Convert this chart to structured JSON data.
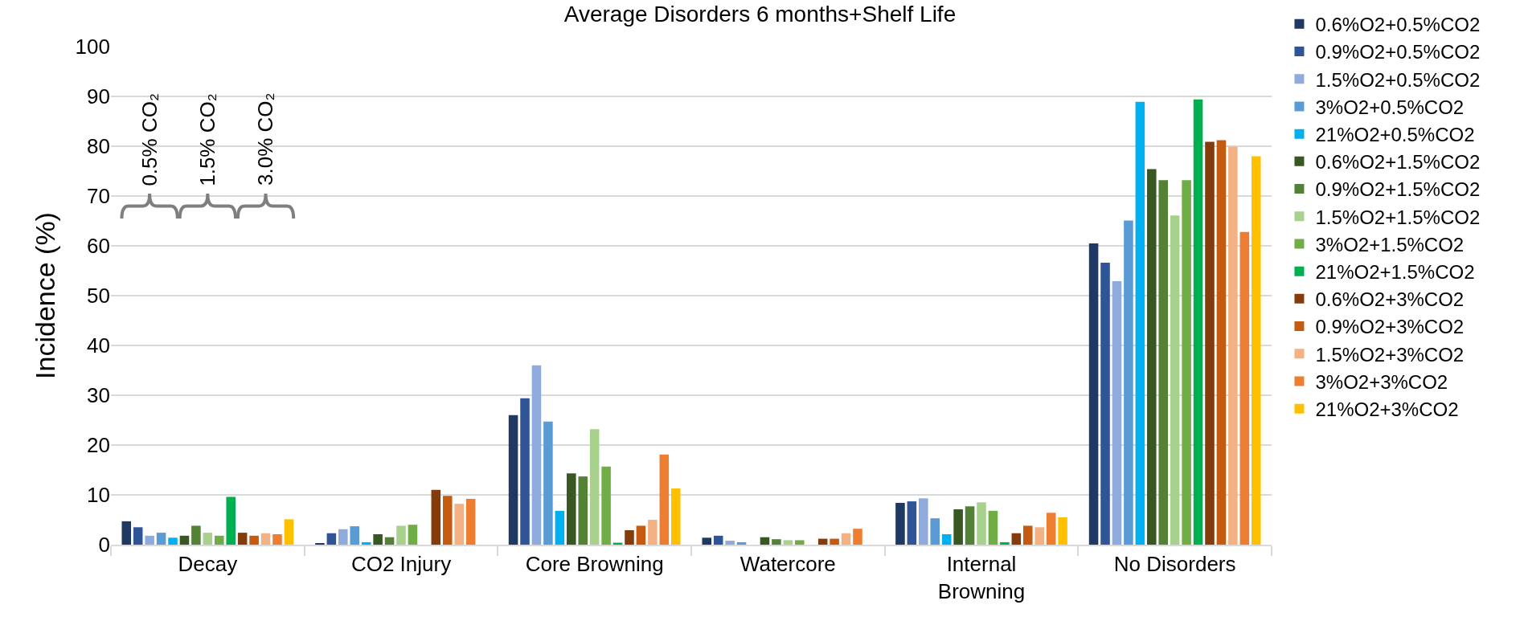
{
  "chart_data": {
    "type": "bar",
    "title": "Average Disorders 6 months+Shelf Life",
    "ylabel": "Incidence (%)",
    "categories": [
      "Decay",
      "CO2 Injury",
      "Core Browning",
      "Watercore",
      "Internal Browning",
      "No Disorders"
    ],
    "series": [
      {
        "name": "0.6%O2+0.5%CO2",
        "color": "#1f3864",
        "values": [
          4.7,
          0.2,
          26.0,
          1.4,
          8.4,
          60.5
        ]
      },
      {
        "name": "0.9%O2+0.5%CO2",
        "color": "#2f5597",
        "values": [
          3.5,
          2.3,
          29.4,
          1.8,
          8.7,
          56.6
        ]
      },
      {
        "name": "1.5%O2+0.5%CO2",
        "color": "#8faadc",
        "values": [
          1.8,
          3.1,
          36.0,
          0.8,
          9.3,
          52.9
        ]
      },
      {
        "name": "3%O2+0.5%CO2",
        "color": "#5b9bd5",
        "values": [
          2.4,
          3.7,
          24.7,
          0.5,
          5.3,
          65.1
        ]
      },
      {
        "name": "21%O2+0.5%CO2",
        "color": "#00b0f0",
        "values": [
          1.4,
          0.5,
          6.8,
          null,
          2.1,
          88.9
        ]
      },
      {
        "name": "0.6%O2+1.5%CO2",
        "color": "#385723",
        "values": [
          1.8,
          2.1,
          14.3,
          1.5,
          7.1,
          75.4
        ]
      },
      {
        "name": "0.9%O2+1.5%CO2",
        "color": "#548235",
        "values": [
          3.8,
          1.5,
          13.7,
          1.1,
          7.7,
          73.2
        ]
      },
      {
        "name": "1.5%O2+1.5%CO2",
        "color": "#a9d18e",
        "values": [
          2.4,
          3.8,
          23.2,
          0.9,
          8.5,
          66.1
        ]
      },
      {
        "name": "3%O2+1.5%CO2",
        "color": "#70ad47",
        "values": [
          1.8,
          4.0,
          15.7,
          0.9,
          6.8,
          73.2
        ]
      },
      {
        "name": "21%O2+1.5%CO2",
        "color": "#00b050",
        "values": [
          9.6,
          null,
          0.4,
          null,
          0.5,
          89.4
        ]
      },
      {
        "name": "0.6%O2+3%CO2",
        "color": "#843c0c",
        "values": [
          2.4,
          11.0,
          2.9,
          1.2,
          2.3,
          80.9
        ]
      },
      {
        "name": "0.9%O2+3%CO2",
        "color": "#c55a11",
        "values": [
          1.8,
          9.8,
          3.8,
          1.2,
          3.8,
          81.2
        ]
      },
      {
        "name": "1.5%O2+3%CO2",
        "color": "#f4b183",
        "values": [
          2.3,
          8.2,
          5.0,
          2.3,
          3.5,
          79.9
        ]
      },
      {
        "name": "3%O2+3%CO2",
        "color": "#ed7d31",
        "values": [
          2.1,
          9.2,
          18.1,
          3.2,
          6.4,
          62.8
        ]
      },
      {
        "name": "21%O2+3%CO2",
        "color": "#ffc000",
        "values": [
          5.1,
          null,
          11.3,
          null,
          5.5,
          78.0
        ]
      }
    ],
    "ylim": [
      0,
      100
    ],
    "yticks": [
      0,
      10,
      20,
      30,
      40,
      50,
      60,
      70,
      80,
      90,
      100
    ],
    "grid": "y",
    "legend": "right",
    "annotations": [
      "0.5% CO₂",
      "1.5% CO₂",
      "3.0% CO₂"
    ]
  }
}
